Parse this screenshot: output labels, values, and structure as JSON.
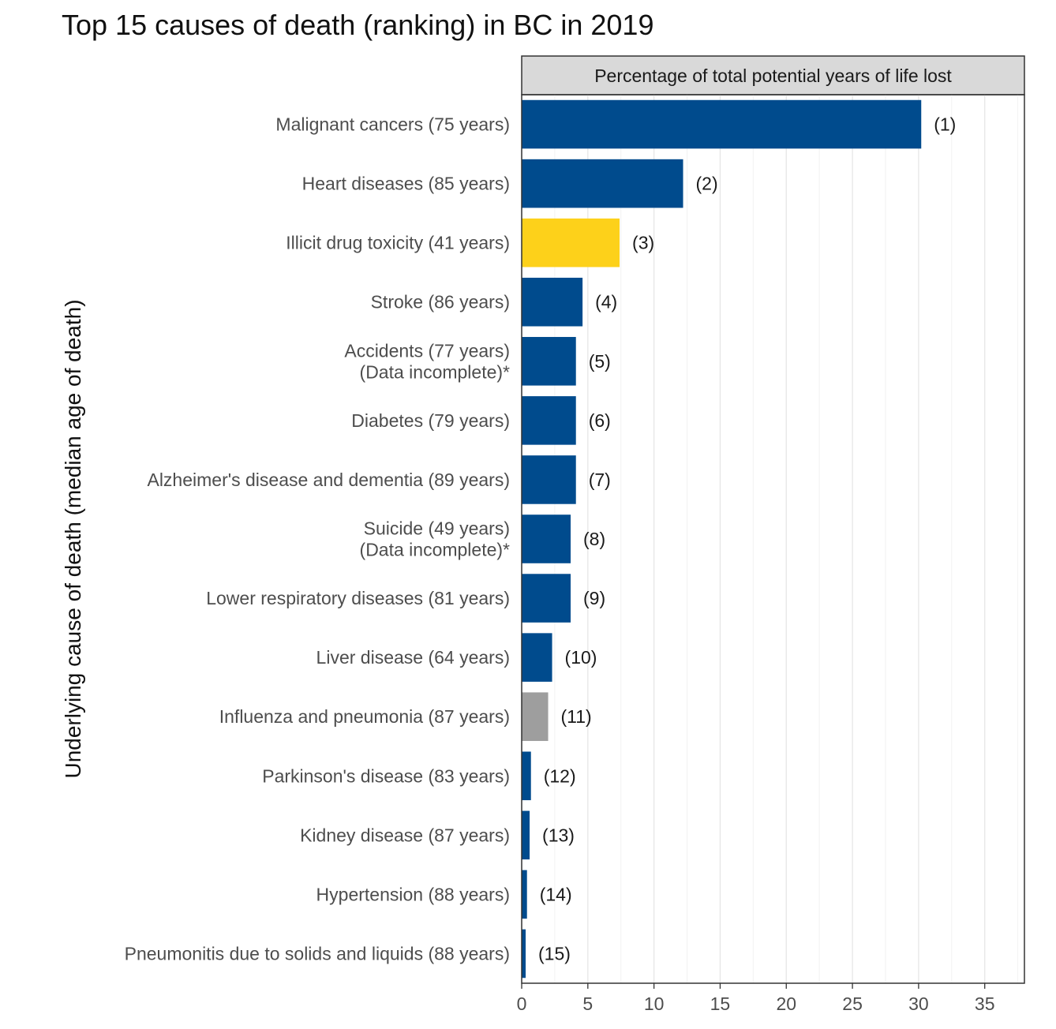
{
  "chart_data": {
    "type": "bar",
    "orientation": "horizontal",
    "title": "Top 15 causes of death (ranking) in BC in 2019",
    "ylabel": "Underlying cause of death (median age of death)",
    "facet_label": "Percentage of total potential years of life lost",
    "xlim": [
      0,
      38
    ],
    "xticks": [
      "0",
      "5",
      "10",
      "15",
      "20",
      "25",
      "30",
      "35"
    ],
    "grid": true,
    "legend": "none",
    "colors": {
      "default": "#004B8D",
      "highlight": "#FDD11A",
      "muted": "#9E9E9E"
    },
    "categories": [
      {
        "label": [
          "Malignant cancers (75 years)"
        ],
        "value": 30.2,
        "rank": "(1)",
        "color": "#004B8D"
      },
      {
        "label": [
          "Heart diseases (85 years)"
        ],
        "value": 12.2,
        "rank": "(2)",
        "color": "#004B8D"
      },
      {
        "label": [
          "Illicit drug toxicity (41 years)"
        ],
        "value": 7.4,
        "rank": "(3)",
        "color": "#FDD11A"
      },
      {
        "label": [
          "Stroke (86 years)"
        ],
        "value": 4.6,
        "rank": "(4)",
        "color": "#004B8D"
      },
      {
        "label": [
          "Accidents (77 years)",
          "(Data incomplete)*"
        ],
        "value": 4.1,
        "rank": "(5)",
        "color": "#004B8D"
      },
      {
        "label": [
          "Diabetes (79 years)"
        ],
        "value": 4.1,
        "rank": "(6)",
        "color": "#004B8D"
      },
      {
        "label": [
          "Alzheimer's disease and dementia (89 years)"
        ],
        "value": 4.1,
        "rank": "(7)",
        "color": "#004B8D"
      },
      {
        "label": [
          "Suicide (49 years)",
          "(Data incomplete)*"
        ],
        "value": 3.7,
        "rank": "(8)",
        "color": "#004B8D"
      },
      {
        "label": [
          "Lower respiratory diseases (81 years)"
        ],
        "value": 3.7,
        "rank": "(9)",
        "color": "#004B8D"
      },
      {
        "label": [
          "Liver disease (64 years)"
        ],
        "value": 2.3,
        "rank": "(10)",
        "color": "#004B8D"
      },
      {
        "label": [
          "Influenza and pneumonia (87 years)"
        ],
        "value": 2.0,
        "rank": "(11)",
        "color": "#9E9E9E"
      },
      {
        "label": [
          "Parkinson's disease (83 years)"
        ],
        "value": 0.7,
        "rank": "(12)",
        "color": "#004B8D"
      },
      {
        "label": [
          "Kidney disease (87 years)"
        ],
        "value": 0.6,
        "rank": "(13)",
        "color": "#004B8D"
      },
      {
        "label": [
          "Hypertension (88 years)"
        ],
        "value": 0.4,
        "rank": "(14)",
        "color": "#004B8D"
      },
      {
        "label": [
          "Pneumonitis due to solids and liquids (88 years)"
        ],
        "value": 0.3,
        "rank": "(15)",
        "color": "#004B8D"
      }
    ]
  }
}
